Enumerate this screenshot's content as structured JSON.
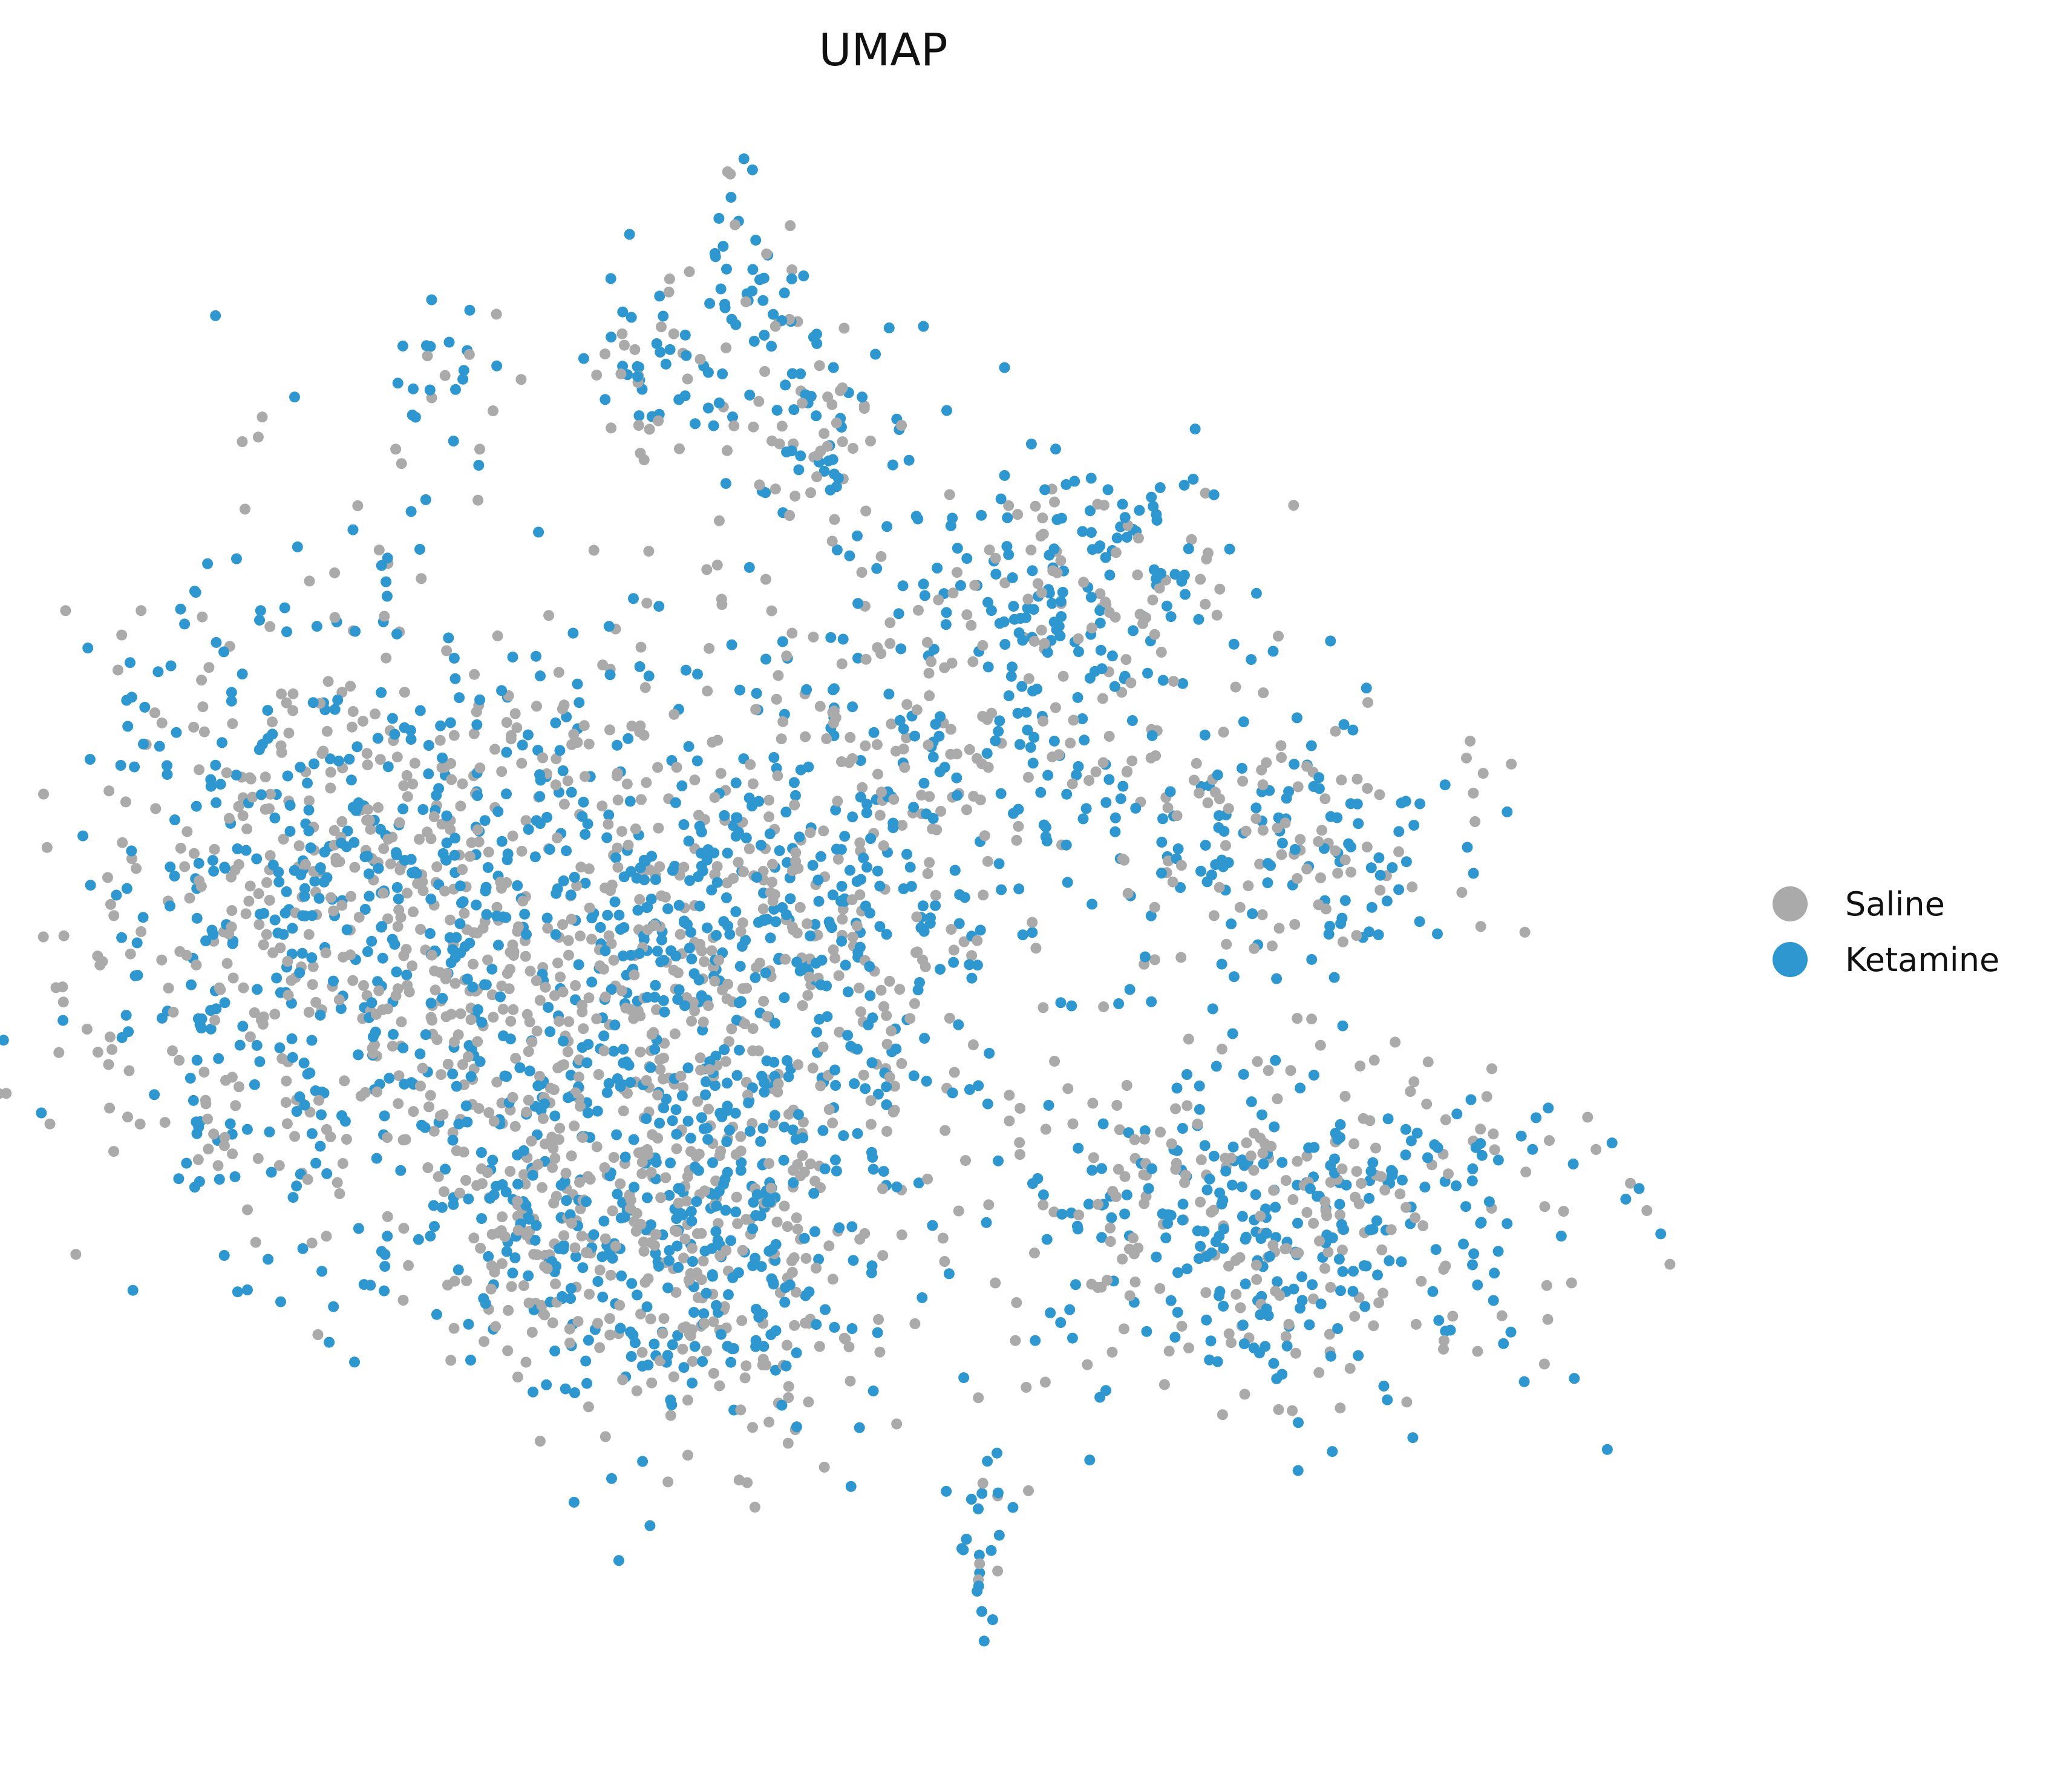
{
  "chart_data": {
    "type": "scatter",
    "title": "UMAP",
    "xlabel": "",
    "ylabel": "",
    "axes_visible": false,
    "grid": false,
    "xlim": [
      0,
      100
    ],
    "ylim": [
      0,
      100
    ],
    "legend_position": "right",
    "series": [
      {
        "name": "Saline",
        "color": "#aaaaaa"
      },
      {
        "name": "Ketamine",
        "color": "#2f97cf"
      }
    ],
    "point_count_per_series_estimate": 1600,
    "clusters": [
      {
        "cx": 16,
        "cy": 52,
        "sx": 9,
        "sy": 11,
        "n": 900,
        "ketamine_share": 0.5
      },
      {
        "cx": 38,
        "cy": 46,
        "sx": 9,
        "sy": 11,
        "n": 1000,
        "ketamine_share": 0.52
      },
      {
        "cx": 28,
        "cy": 30,
        "sx": 4,
        "sy": 4,
        "n": 150,
        "ketamine_share": 0.55
      },
      {
        "cx": 39,
        "cy": 27,
        "sx": 5,
        "sy": 6,
        "n": 280,
        "ketamine_share": 0.5
      },
      {
        "cx": 53,
        "cy": 60,
        "sx": 6,
        "sy": 6,
        "n": 200,
        "ketamine_share": 0.55
      },
      {
        "cx": 62,
        "cy": 72,
        "sx": 5,
        "sy": 5,
        "n": 220,
        "ketamine_share": 0.6
      },
      {
        "cx": 46,
        "cy": 83,
        "sx": 3,
        "sy": 5,
        "n": 90,
        "ketamine_share": 0.55
      },
      {
        "cx": 41,
        "cy": 91,
        "sx": 2,
        "sy": 4,
        "n": 50,
        "ketamine_share": 0.7
      },
      {
        "cx": 35,
        "cy": 87,
        "sx": 2,
        "sy": 3,
        "n": 50,
        "ketamine_share": 0.6
      },
      {
        "cx": 22,
        "cy": 86,
        "sx": 2,
        "sy": 3,
        "n": 25,
        "ketamine_share": 0.6
      },
      {
        "cx": 75,
        "cy": 56,
        "sx": 6,
        "sy": 4,
        "n": 210,
        "ketamine_share": 0.55
      },
      {
        "cx": 75,
        "cy": 31,
        "sx": 9,
        "sy": 6,
        "n": 500,
        "ketamine_share": 0.55
      },
      {
        "cx": 56,
        "cy": 10,
        "sx": 1,
        "sy": 4,
        "n": 25,
        "ketamine_share": 0.75
      },
      {
        "cx": 7,
        "cy": 38,
        "sx": 2,
        "sy": 2,
        "n": 25,
        "ketamine_share": 0.4
      }
    ]
  },
  "legend": {
    "items": [
      {
        "label": "Saline",
        "color": "#aaaaaa"
      },
      {
        "label": "Ketamine",
        "color": "#2f97cf"
      }
    ]
  }
}
